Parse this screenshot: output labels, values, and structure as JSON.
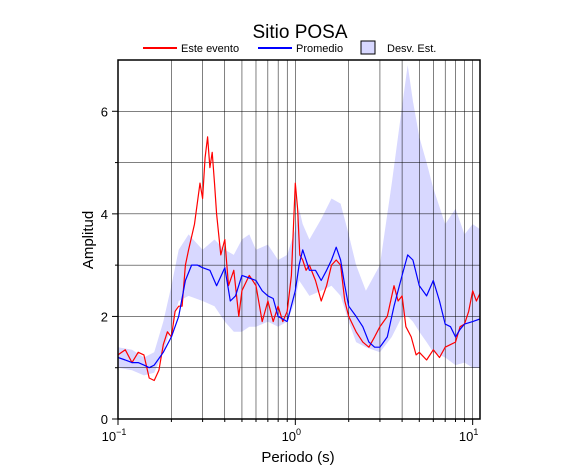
{
  "chart_data": {
    "type": "line",
    "title": "Sitio POSA",
    "xlabel": "Periodo (s)",
    "ylabel": "Amplitud",
    "x_scale": "log",
    "xlim": [
      0.1,
      11
    ],
    "ylim": [
      0,
      7
    ],
    "grid": true,
    "legend_position": "top",
    "x_ticks": [
      {
        "value": 0.1,
        "base": "10",
        "exp": "−1"
      },
      {
        "value": 1,
        "base": "10",
        "exp": "0"
      },
      {
        "value": 10,
        "base": "10",
        "exp": "1"
      }
    ],
    "y_ticks": [
      0,
      2,
      4,
      6
    ],
    "legend": [
      {
        "label": "Este evento",
        "kind": "line",
        "color": "#ff0000"
      },
      {
        "label": "Promedio",
        "kind": "line",
        "color": "#0000ff"
      },
      {
        "label": "Desv. Est.",
        "kind": "band",
        "color": "#d8d8ff"
      }
    ],
    "band": {
      "name": "Desv. Est.",
      "color": "#d8d8ff",
      "x": [
        0.1,
        0.12,
        0.14,
        0.16,
        0.18,
        0.2,
        0.22,
        0.25,
        0.3,
        0.35,
        0.4,
        0.45,
        0.5,
        0.55,
        0.6,
        0.7,
        0.8,
        0.9,
        1.0,
        1.05,
        1.1,
        1.2,
        1.4,
        1.6,
        1.8,
        2.0,
        2.2,
        2.5,
        3.0,
        3.5,
        4.0,
        4.3,
        4.6,
        5.0,
        5.5,
        6.0,
        7.0,
        8.0,
        9.0,
        10.0,
        11.0
      ],
      "upper": [
        1.4,
        1.35,
        1.2,
        1.3,
        1.9,
        2.6,
        3.3,
        3.6,
        3.3,
        3.5,
        3.3,
        3.2,
        3.5,
        3.6,
        3.3,
        3.4,
        3.1,
        3.2,
        3.7,
        4.1,
        3.8,
        3.5,
        3.9,
        4.3,
        4.2,
        3.6,
        3.0,
        2.5,
        3.0,
        4.6,
        6.1,
        6.9,
        6.2,
        5.5,
        5.0,
        4.5,
        3.8,
        4.1,
        3.6,
        3.8,
        3.7
      ],
      "lower": [
        1.0,
        0.95,
        0.85,
        0.9,
        1.3,
        1.8,
        2.3,
        2.4,
        2.3,
        2.2,
        1.9,
        1.7,
        1.7,
        1.8,
        1.8,
        1.9,
        1.8,
        1.9,
        2.3,
        2.7,
        2.6,
        2.4,
        2.5,
        2.6,
        2.4,
        1.9,
        1.5,
        1.4,
        1.3,
        1.6,
        2.0,
        2.0,
        1.9,
        1.7,
        1.5,
        1.3,
        1.2,
        1.05,
        1.1,
        1.0,
        1.0
      ]
    },
    "series": [
      {
        "name": "Este evento",
        "color": "#ff0000",
        "x": [
          0.1,
          0.11,
          0.12,
          0.13,
          0.14,
          0.15,
          0.16,
          0.17,
          0.18,
          0.19,
          0.2,
          0.21,
          0.22,
          0.23,
          0.24,
          0.25,
          0.27,
          0.29,
          0.3,
          0.31,
          0.32,
          0.33,
          0.34,
          0.35,
          0.36,
          0.38,
          0.4,
          0.42,
          0.45,
          0.48,
          0.5,
          0.55,
          0.6,
          0.65,
          0.7,
          0.75,
          0.8,
          0.85,
          0.9,
          0.95,
          1.0,
          1.03,
          1.06,
          1.1,
          1.15,
          1.2,
          1.3,
          1.4,
          1.5,
          1.6,
          1.7,
          1.8,
          1.9,
          2.0,
          2.2,
          2.4,
          2.6,
          2.8,
          3.0,
          3.3,
          3.6,
          3.8,
          4.0,
          4.2,
          4.5,
          4.8,
          5.0,
          5.5,
          6.0,
          6.5,
          7.0,
          7.5,
          8.0,
          8.5,
          9.0,
          9.5,
          10.0,
          10.5,
          11.0
        ],
        "y": [
          1.25,
          1.35,
          1.1,
          1.3,
          1.25,
          0.8,
          0.75,
          0.95,
          1.45,
          1.7,
          1.6,
          2.1,
          2.2,
          2.2,
          3.0,
          3.3,
          3.8,
          4.6,
          4.3,
          5.1,
          5.5,
          4.9,
          5.2,
          4.6,
          4.0,
          3.2,
          3.5,
          2.6,
          2.9,
          2.0,
          2.5,
          2.8,
          2.6,
          1.9,
          2.3,
          1.9,
          2.2,
          1.9,
          2.1,
          2.8,
          4.6,
          4.1,
          3.2,
          3.1,
          2.9,
          3.0,
          2.7,
          2.3,
          2.6,
          3.0,
          3.1,
          3.0,
          2.3,
          2.0,
          1.7,
          1.5,
          1.4,
          1.6,
          1.8,
          2.0,
          2.6,
          2.3,
          2.4,
          1.8,
          1.6,
          1.25,
          1.3,
          1.15,
          1.35,
          1.2,
          1.4,
          1.45,
          1.5,
          1.8,
          1.85,
          2.1,
          2.5,
          2.3,
          2.45
        ]
      },
      {
        "name": "Promedio",
        "color": "#0000ff",
        "x": [
          0.1,
          0.11,
          0.12,
          0.13,
          0.14,
          0.15,
          0.16,
          0.18,
          0.2,
          0.22,
          0.24,
          0.26,
          0.28,
          0.3,
          0.33,
          0.36,
          0.4,
          0.43,
          0.46,
          0.5,
          0.55,
          0.6,
          0.65,
          0.7,
          0.75,
          0.8,
          0.9,
          1.0,
          1.05,
          1.1,
          1.2,
          1.3,
          1.4,
          1.5,
          1.6,
          1.7,
          1.8,
          1.9,
          2.0,
          2.2,
          2.4,
          2.6,
          2.8,
          3.0,
          3.3,
          3.6,
          4.0,
          4.3,
          4.6,
          5.0,
          5.5,
          6.0,
          6.5,
          7.0,
          7.5,
          8.0,
          8.5,
          9.0,
          10.0,
          11.0
        ],
        "y": [
          1.2,
          1.15,
          1.1,
          1.1,
          1.05,
          1.0,
          1.05,
          1.3,
          1.6,
          2.0,
          2.7,
          3.0,
          3.0,
          2.95,
          2.9,
          2.6,
          2.95,
          2.3,
          2.4,
          2.8,
          2.75,
          2.7,
          2.5,
          2.4,
          2.35,
          2.0,
          1.9,
          2.5,
          3.0,
          3.3,
          2.9,
          2.9,
          2.7,
          2.9,
          3.1,
          3.35,
          3.1,
          2.6,
          2.2,
          2.0,
          1.8,
          1.5,
          1.4,
          1.4,
          1.6,
          2.2,
          2.8,
          3.2,
          3.1,
          2.6,
          2.4,
          2.7,
          2.3,
          1.85,
          1.8,
          1.6,
          1.75,
          1.85,
          1.9,
          1.95
        ]
      }
    ]
  }
}
